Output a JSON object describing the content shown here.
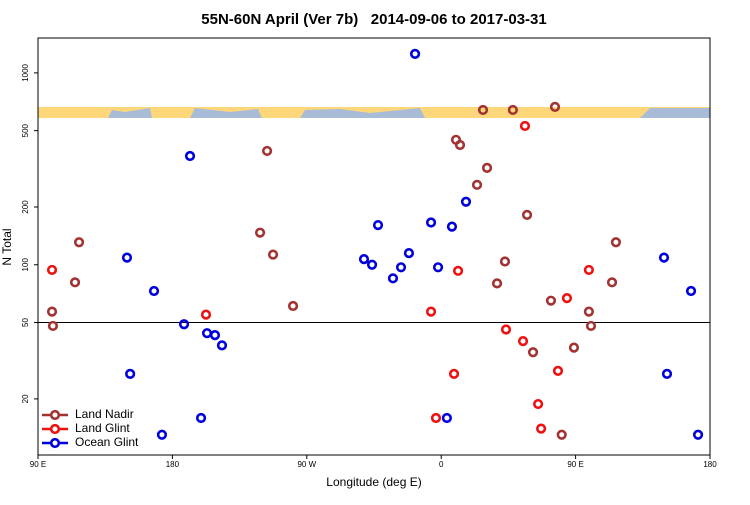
{
  "chart_data": {
    "type": "scatter",
    "title": "55N-60N April (Ver 7b)   2014-09-06 to 2017-03-31",
    "x_label": "Longitude (deg E)",
    "y_label": "N Total",
    "xlim": [
      90,
      540
    ],
    "xticks": [
      {
        "value": 90,
        "label": "90 E"
      },
      {
        "value": 180,
        "label": "180"
      },
      {
        "value": 270,
        "label": "90 W"
      },
      {
        "value": 360,
        "label": "0"
      },
      {
        "value": 450,
        "label": "90 E"
      },
      {
        "value": 540,
        "label": "180"
      }
    ],
    "ylim": [
      10.2,
      1520
    ],
    "yticks": [
      20,
      50,
      100,
      200,
      500,
      1000
    ],
    "log_y": true,
    "reference_line": 50,
    "legend": "bottom-left",
    "series": [
      {
        "name": "Land Nadir",
        "color": "#a33333",
        "x": [
          99.4,
          100,
          117.5,
          114.8,
          238.7,
          243.4,
          247.4,
          260.8,
          369.9,
          372.6,
          388,
          408,
          390.7,
          384,
          402.7,
          397.4,
          417.5,
          421.5,
          436.2,
          433.5,
          448.9,
          458.9,
          460.3,
          477,
          474.4,
          440.7
        ],
        "values": [
          57,
          48,
          131,
          81,
          147,
          392,
          113,
          61,
          448,
          421,
          641,
          641,
          320,
          261,
          104,
          80,
          182,
          35,
          665,
          65,
          37,
          57,
          48,
          131,
          81,
          13
        ]
      },
      {
        "name": "Land Glint",
        "color": "#ee1111",
        "x": [
          99.4,
          202.5,
          371.3,
          353.2,
          356.5,
          368.6,
          416.1,
          403.4,
          414.8,
          424.9,
          426.9,
          438.2,
          444.2,
          458.9
        ],
        "values": [
          94,
          55,
          93,
          57,
          15.9,
          27,
          529,
          46,
          40,
          18.8,
          14,
          28,
          67,
          94
        ]
      },
      {
        "name": "Ocean Glint",
        "color": "#0000dd",
        "x": [
          149.6,
          167.7,
          151.7,
          187.8,
          191.8,
          199.2,
          203.2,
          208.5,
          213.2,
          173,
          317.7,
          308.3,
          313.7,
          327.7,
          333.1,
          338.4,
          342.5,
          353.2,
          357.9,
          367.2,
          376.6,
          363.8,
          509.2,
          527.3,
          511.2,
          532
        ],
        "values": [
          109,
          73,
          27,
          49,
          369,
          15.9,
          44,
          43,
          38,
          13,
          161,
          107,
          100,
          85,
          97,
          115,
          1256,
          166,
          97,
          158,
          213,
          15.9,
          109,
          73,
          27,
          13
        ]
      }
    ]
  }
}
